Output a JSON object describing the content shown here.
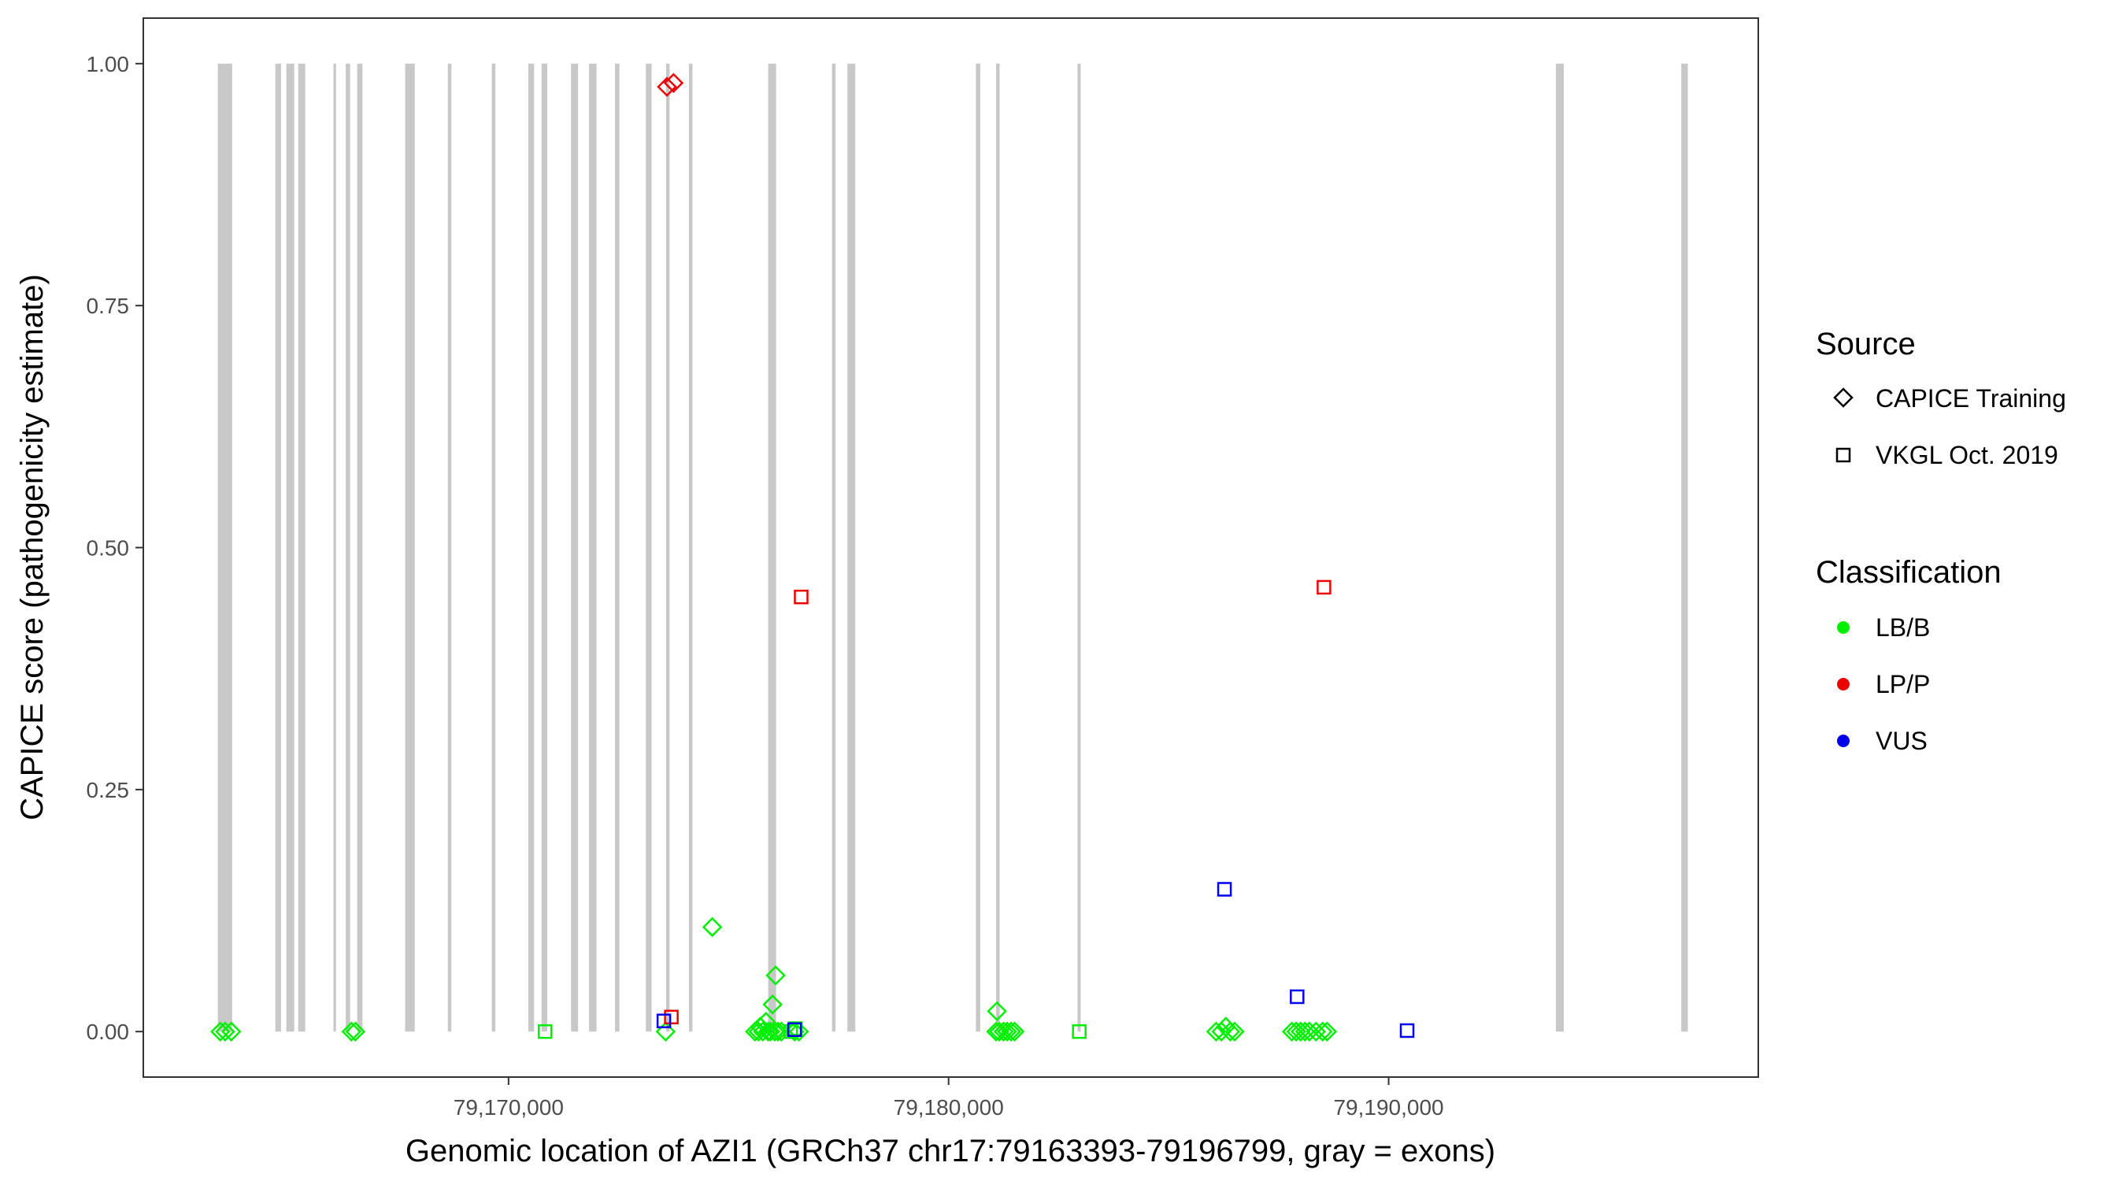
{
  "chart_data": {
    "type": "scatter",
    "title": "",
    "xlabel": "Genomic location of AZI1 (GRCh37 chr17:79163393-79196799, gray = exons)",
    "ylabel": "CAPICE score (pathogenicity estimate)",
    "xlim": [
      79161700,
      79198400
    ],
    "ylim": [
      -0.047,
      1.047
    ],
    "x_ticks": [
      79170000,
      79180000,
      79190000
    ],
    "x_tick_labels": [
      "79,170,000",
      "79,180,000",
      "79,190,000"
    ],
    "y_ticks": [
      0.0,
      0.25,
      0.5,
      0.75,
      1.0
    ],
    "y_tick_labels": [
      "0.00",
      "0.25",
      "0.50",
      "0.75",
      "1.00"
    ],
    "grid": false,
    "legend_placement": "right",
    "exon_color": "#c8c8c8",
    "exons": [
      [
        79163393,
        79163720
      ],
      [
        79164700,
        79164830
      ],
      [
        79164950,
        79165130
      ],
      [
        79165220,
        79165380
      ],
      [
        79166020,
        79166080
      ],
      [
        79166300,
        79166400
      ],
      [
        79166560,
        79166680
      ],
      [
        79167650,
        79167870
      ],
      [
        79168620,
        79168700
      ],
      [
        79169620,
        79169700
      ],
      [
        79170450,
        79170580
      ],
      [
        79170750,
        79170880
      ],
      [
        79171420,
        79171580
      ],
      [
        79171830,
        79172000
      ],
      [
        79172420,
        79172520
      ],
      [
        79173120,
        79173250
      ],
      [
        79173580,
        79173660
      ],
      [
        79174100,
        79174180
      ],
      [
        79175900,
        79176080
      ],
      [
        79177350,
        79177430
      ],
      [
        79177700,
        79177880
      ],
      [
        79180620,
        79180720
      ],
      [
        79181080,
        79181160
      ],
      [
        79182930,
        79183000
      ],
      [
        79193800,
        79193980
      ],
      [
        79196650,
        79196799
      ]
    ],
    "legend": {
      "source_title": "Source",
      "source_items": [
        {
          "label": "CAPICE Training",
          "shape": "diamond"
        },
        {
          "label": "VKGL Oct. 2019",
          "shape": "square"
        }
      ],
      "class_title": "Classification",
      "class_items": [
        {
          "label": "LB/B",
          "color": "#00ee00"
        },
        {
          "label": "LP/P",
          "color": "#ee0000"
        },
        {
          "label": "VUS",
          "color": "#0000ee"
        }
      ]
    },
    "series": [
      {
        "source": "CAPICE Training",
        "classification": "LB/B",
        "shape": "diamond",
        "color": "#00ee00",
        "points": [
          [
            79163450,
            0.0
          ],
          [
            79163560,
            0.0
          ],
          [
            79163700,
            0.0
          ],
          [
            79166430,
            0.0
          ],
          [
            79166520,
            0.0
          ],
          [
            79173570,
            0.0
          ],
          [
            79174630,
            0.108
          ],
          [
            79175600,
            0.0
          ],
          [
            79175680,
            0.0
          ],
          [
            79175720,
            0.005
          ],
          [
            79175780,
            0.0
          ],
          [
            79175850,
            0.01
          ],
          [
            79175900,
            0.0
          ],
          [
            79175950,
            0.0
          ],
          [
            79176000,
            0.028
          ],
          [
            79176050,
            0.0
          ],
          [
            79176070,
            0.058
          ],
          [
            79176120,
            0.0
          ],
          [
            79176200,
            0.0
          ],
          [
            79176500,
            0.0
          ],
          [
            79176600,
            0.0
          ],
          [
            79181080,
            0.0
          ],
          [
            79181100,
            0.021
          ],
          [
            79181150,
            0.0
          ],
          [
            79181250,
            0.0
          ],
          [
            79181330,
            0.0
          ],
          [
            79181420,
            0.0
          ],
          [
            79181500,
            0.0
          ],
          [
            79186080,
            0.0
          ],
          [
            79186200,
            0.0
          ],
          [
            79186300,
            0.005
          ],
          [
            79186400,
            0.0
          ],
          [
            79186500,
            0.0
          ],
          [
            79187800,
            0.0
          ],
          [
            79187900,
            0.0
          ],
          [
            79188000,
            0.0
          ],
          [
            79188100,
            0.0
          ],
          [
            79188200,
            0.0
          ],
          [
            79188350,
            0.0
          ],
          [
            79188500,
            0.0
          ],
          [
            79188600,
            0.0
          ]
        ]
      },
      {
        "source": "CAPICE Training",
        "classification": "LP/P",
        "shape": "diamond",
        "color": "#ee0000",
        "points": [
          [
            79173600,
            0.976
          ],
          [
            79173750,
            0.98
          ]
        ]
      },
      {
        "source": "VKGL Oct. 2019",
        "classification": "LB/B",
        "shape": "square",
        "color": "#00ee00",
        "points": [
          [
            79170830,
            0.0
          ],
          [
            79176410,
            0.0
          ],
          [
            79176520,
            0.003
          ],
          [
            79182970,
            0.0
          ]
        ]
      },
      {
        "source": "VKGL Oct. 2019",
        "classification": "LP/P",
        "shape": "square",
        "color": "#ee0000",
        "points": [
          [
            79173700,
            0.015
          ],
          [
            79176650,
            0.449
          ],
          [
            79188530,
            0.459
          ]
        ]
      },
      {
        "source": "VKGL Oct. 2019",
        "classification": "VUS",
        "shape": "square",
        "color": "#0000ee",
        "points": [
          [
            79173530,
            0.011
          ],
          [
            79176500,
            0.002
          ],
          [
            79186270,
            0.147
          ],
          [
            79187920,
            0.036
          ],
          [
            79190420,
            0.001
          ]
        ]
      }
    ]
  }
}
